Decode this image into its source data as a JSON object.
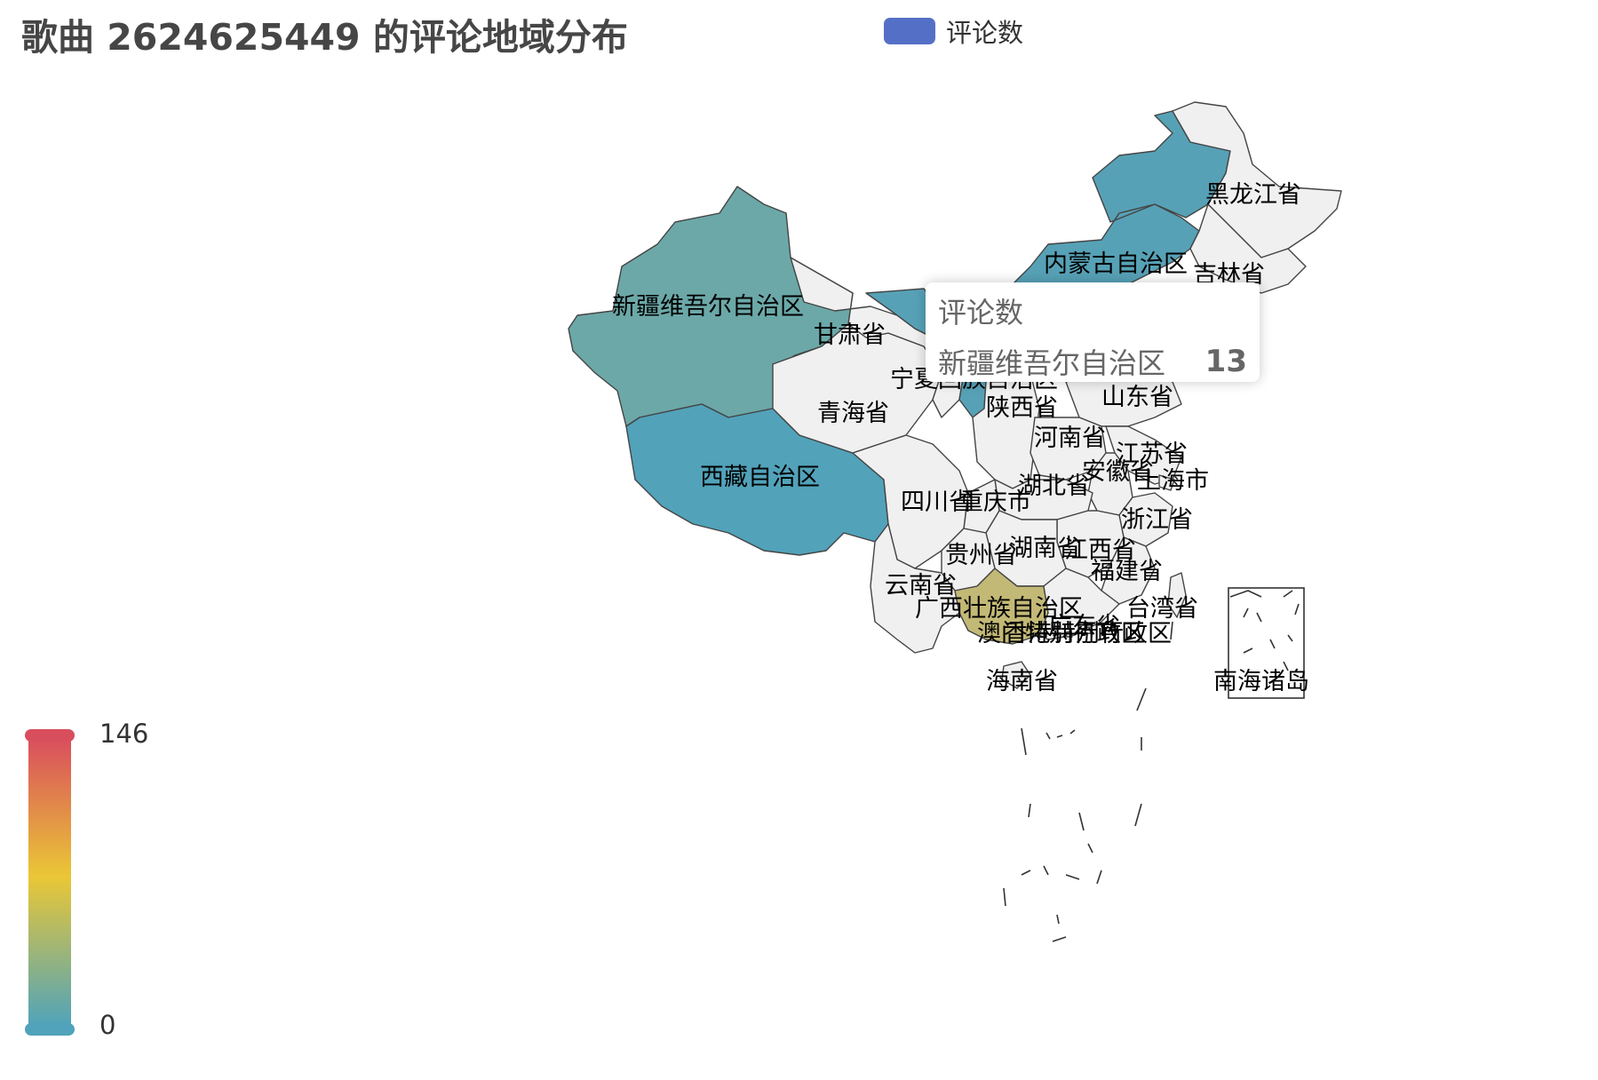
{
  "title": "歌曲 2624625449 的评论地域分布",
  "legend": {
    "label": "评论数",
    "color": "#5470c6"
  },
  "visual_map": {
    "min": 0,
    "max": 146,
    "min_label": "0",
    "max_label": "146",
    "colors": [
      "#50a3ba",
      "#eac736",
      "#d94e5d"
    ]
  },
  "tooltip": {
    "title": "评论数",
    "region": "新疆维吾尔自治区",
    "value": "13"
  },
  "chart_data": {
    "type": "map",
    "series": [
      {
        "name": "评论数"
      }
    ],
    "regions": [
      {
        "name": "黑龙江省",
        "color": "#f0f0f0"
      },
      {
        "name": "内蒙古自治区",
        "color": "#57a1b6"
      },
      {
        "name": "吉林省",
        "color": "#f0f0f0"
      },
      {
        "name": "新疆维吾尔自治区",
        "value": 13,
        "color": "#6ca8a8"
      },
      {
        "name": "甘肃省",
        "color": "#f0f0f0"
      },
      {
        "name": "宁夏回族自治区",
        "color": "#57a1b6"
      },
      {
        "name": "青海省",
        "color": "#f0f0f0"
      },
      {
        "name": "陕西省",
        "color": "#f0f0f0"
      },
      {
        "name": "山东省",
        "color": "#f0f0f0"
      },
      {
        "name": "河南省",
        "color": "#f0f0f0"
      },
      {
        "name": "江苏省",
        "color": "#f0f0f0"
      },
      {
        "name": "西藏自治区",
        "color": "#52a2ba"
      },
      {
        "name": "安徽省",
        "color": "#f0f0f0"
      },
      {
        "name": "上海市",
        "color": "#f0f0f0"
      },
      {
        "name": "湖北省",
        "color": "#f0f0f0"
      },
      {
        "name": "四川省",
        "color": "#f0f0f0"
      },
      {
        "name": "重庆市",
        "color": "#f0f0f0"
      },
      {
        "name": "浙江省",
        "color": "#f0f0f0"
      },
      {
        "name": "贵州省",
        "color": "#f0f0f0"
      },
      {
        "name": "湖南省",
        "color": "#f0f0f0"
      },
      {
        "name": "江西省",
        "color": "#f0f0f0"
      },
      {
        "name": "福建省",
        "color": "#f0f0f0"
      },
      {
        "name": "云南省",
        "color": "#f0f0f0"
      },
      {
        "name": "广西壮族自治区",
        "color": "#c3b976"
      },
      {
        "name": "台湾省",
        "color": "#f0f0f0"
      },
      {
        "name": "澳门特别行政区",
        "color": "#f0f0f0"
      },
      {
        "name": "香港特别行政区",
        "color": "#f0f0f0"
      },
      {
        "name": "广东省",
        "color": "#f0f0f0"
      },
      {
        "name": "海南省",
        "color": "#f0f0f0"
      },
      {
        "name": "南海诸岛",
        "color": "#ffffff"
      }
    ]
  }
}
